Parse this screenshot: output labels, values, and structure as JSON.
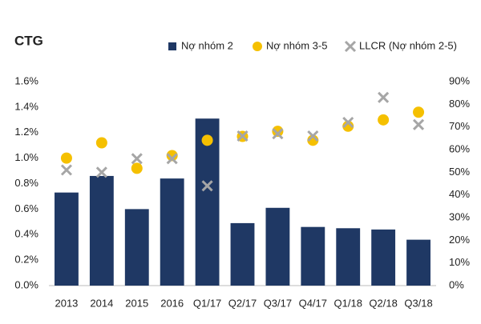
{
  "chart_data": {
    "type": "bar",
    "title": "CTG",
    "categories": [
      "2013",
      "2014",
      "2015",
      "2016",
      "Q1/17",
      "Q2/17",
      "Q3/17",
      "Q4/17",
      "Q1/18",
      "Q2/18",
      "Q3/18"
    ],
    "series": [
      {
        "name": "Nợ nhóm 2",
        "type": "bar",
        "color": "#1f3864",
        "values": [
          0.73,
          0.86,
          0.6,
          0.84,
          1.31,
          0.49,
          0.61,
          0.46,
          0.45,
          0.44,
          0.36
        ]
      },
      {
        "name": "Nợ nhóm 3-5",
        "type": "scatter",
        "marker": "circle",
        "color": "#f5c000",
        "values": [
          1.0,
          1.12,
          0.92,
          1.02,
          1.14,
          1.17,
          1.21,
          1.14,
          1.25,
          1.3,
          1.36
        ]
      },
      {
        "name": "LLCR (Nợ nhóm 2-5)",
        "type": "scatter",
        "marker": "x",
        "axis": "y2",
        "color": "#a6a6a6",
        "values": [
          51,
          50,
          56,
          56,
          44,
          66,
          67,
          66,
          72,
          83,
          71
        ]
      }
    ],
    "ylim": [
      0,
      1.6
    ],
    "yticks": [
      {
        "value": 0,
        "label": "0.0%"
      },
      {
        "value": 0.2,
        "label": "0.2%"
      },
      {
        "value": 0.4,
        "label": "0.4%"
      },
      {
        "value": 0.6,
        "label": "0.6%"
      },
      {
        "value": 0.8,
        "label": "0.8%"
      },
      {
        "value": 1.0,
        "label": "1.0%"
      },
      {
        "value": 1.2,
        "label": "1.2%"
      },
      {
        "value": 1.4,
        "label": "1.4%"
      },
      {
        "value": 1.6,
        "label": "1.6%"
      }
    ],
    "y2lim": [
      0,
      90
    ],
    "y2ticks": [
      {
        "value": 0,
        "label": "0%"
      },
      {
        "value": 10,
        "label": "10%"
      },
      {
        "value": 20,
        "label": "20%"
      },
      {
        "value": 30,
        "label": "30%"
      },
      {
        "value": 40,
        "label": "40%"
      },
      {
        "value": 50,
        "label": "50%"
      },
      {
        "value": 60,
        "label": "60%"
      },
      {
        "value": 70,
        "label": "70%"
      },
      {
        "value": 80,
        "label": "80%"
      },
      {
        "value": 90,
        "label": "90%"
      }
    ],
    "grid": false,
    "legend": "top"
  }
}
